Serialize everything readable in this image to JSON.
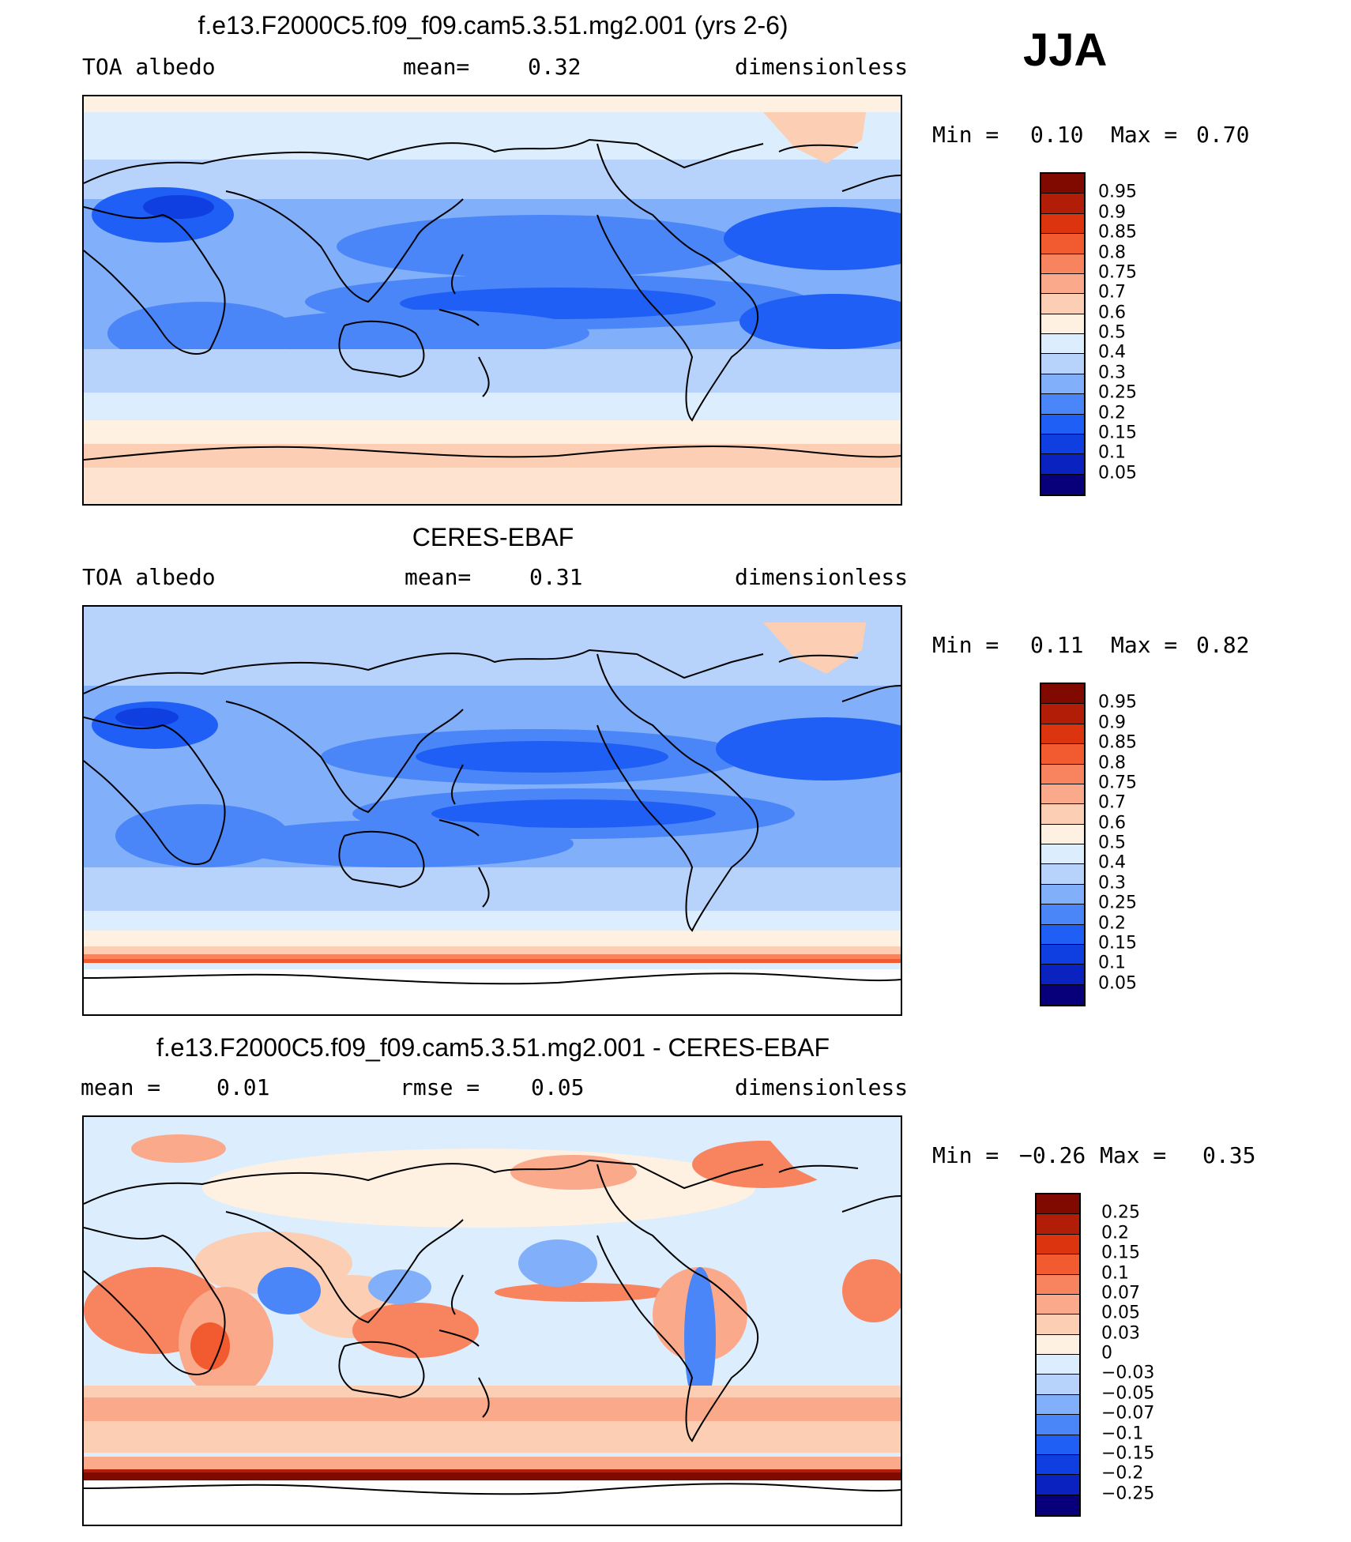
{
  "season": "JJA",
  "colors": {
    "abs_scale": [
      "#08007a",
      "#0a22bf",
      "#0f3fe0",
      "#1f5ff5",
      "#4a86f7",
      "#82aff9",
      "#b7d3fb",
      "#dcedfe",
      "#fff1e2",
      "#fcceb3",
      "#fba98b",
      "#f8845f",
      "#f25a2f",
      "#dd3410",
      "#b11d06",
      "#800a00"
    ],
    "diff_scale": [
      "#08007a",
      "#0a22bf",
      "#0f3fe0",
      "#1f5ff5",
      "#4a86f7",
      "#82aff9",
      "#b7d3fb",
      "#dcedfe",
      "#fff1e2",
      "#fcceb3",
      "#fba98b",
      "#f8845f",
      "#f25a2f",
      "#dd3410",
      "#b11d06",
      "#800a00"
    ],
    "land_outline": "#000000"
  },
  "panels": [
    {
      "title": "f.e13.F2000C5.f09_f09.cam5.3.51.mg2.001 (yrs 2-6)",
      "left_label": "TOA albedo",
      "mid_label": "mean=",
      "mid_value": "0.32",
      "right_label": "dimensionless",
      "min_label": "Min =",
      "min_value": "0.10",
      "max_label": "Max =",
      "max_value": "0.70",
      "colorbar_labels": [
        "0.95",
        "0.9",
        "0.85",
        "0.8",
        "0.75",
        "0.7",
        "0.6",
        "0.5",
        "0.4",
        "0.3",
        "0.25",
        "0.2",
        "0.15",
        "0.1",
        "0.05"
      ]
    },
    {
      "title": "CERES-EBAF",
      "left_label": "TOA albedo",
      "mid_label": "mean=",
      "mid_value": "0.31",
      "right_label": "dimensionless",
      "min_label": "Min =",
      "min_value": "0.11",
      "max_label": "Max =",
      "max_value": "0.82",
      "colorbar_labels": [
        "0.95",
        "0.9",
        "0.85",
        "0.8",
        "0.75",
        "0.7",
        "0.6",
        "0.5",
        "0.4",
        "0.3",
        "0.25",
        "0.2",
        "0.15",
        "0.1",
        "0.05"
      ]
    },
    {
      "title": "f.e13.F2000C5.f09_f09.cam5.3.51.mg2.001 - CERES-EBAF",
      "left_label": "mean =",
      "left_value": "0.01",
      "mid_label": "rmse =",
      "mid_value": "0.05",
      "right_label": "dimensionless",
      "min_label": "Min =",
      "min_value": "−0.26",
      "max_label": "Max =",
      "max_value": "0.35",
      "colorbar_labels": [
        "0.25",
        "0.2",
        "0.15",
        "0.1",
        "0.07",
        "0.05",
        "0.03",
        "0",
        "−0.03",
        "−0.05",
        "−0.07",
        "−0.1",
        "−0.15",
        "−0.2",
        "−0.25"
      ]
    }
  ]
}
